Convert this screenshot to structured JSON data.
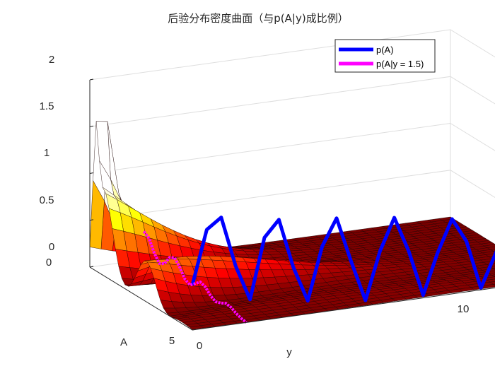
{
  "chart_data": {
    "type": "surface",
    "title": "后验分布密度曲面（与p(A|y)成比例）",
    "xlabel": "y",
    "ylabel": "A",
    "zlabel": "",
    "xlim": [
      0,
      10
    ],
    "ylim": [
      0,
      5
    ],
    "zlim": [
      0,
      2
    ],
    "x_ticks": [
      "0",
      "10"
    ],
    "y_ticks": [
      "0",
      "5"
    ],
    "z_ticks": [
      "0",
      "0.5",
      "1",
      "1.5",
      "2"
    ],
    "grid": true,
    "colormap": "hot",
    "legend_position": "top-right",
    "series": [
      {
        "name": "p(A)",
        "color": "#0000ff",
        "plane": "A = 5 (back wall)",
        "x": [
          0.0,
          0.4,
          0.8,
          1.2,
          1.6,
          2.0,
          2.4,
          2.8,
          3.2,
          3.6,
          4.0,
          4.4,
          4.8,
          5.2,
          5.6,
          6.0,
          6.4,
          6.8,
          7.2,
          7.6,
          8.0,
          8.4,
          8.8,
          9.2,
          9.6,
          10.0
        ],
        "z": [
          0.48,
          1.05,
          1.16,
          0.62,
          0.24,
          0.88,
          1.05,
          0.52,
          0.14,
          0.7,
          0.98,
          0.5,
          0.06,
          0.56,
          0.9,
          0.52,
          0.03,
          0.46,
          0.8,
          0.54,
          0.02,
          0.36,
          0.7,
          0.42,
          0.04,
          0.0
        ]
      },
      {
        "name": "p(A|y = 1.5)",
        "color": "#ff00ff",
        "plane": "y = 1.5",
        "a": [
          0.0,
          0.25,
          0.5,
          0.75,
          1.0,
          1.25,
          1.5,
          1.75,
          2.0,
          2.25,
          2.5,
          2.75,
          3.0,
          3.25,
          3.5,
          3.75,
          4.0,
          4.25,
          4.5,
          4.75,
          5.0
        ],
        "z": [
          0.3,
          0.26,
          0.14,
          0.06,
          0.09,
          0.19,
          0.22,
          0.15,
          0.06,
          0.03,
          0.08,
          0.13,
          0.11,
          0.05,
          0.02,
          0.04,
          0.07,
          0.06,
          0.03,
          0.01,
          0.0
        ]
      }
    ]
  }
}
